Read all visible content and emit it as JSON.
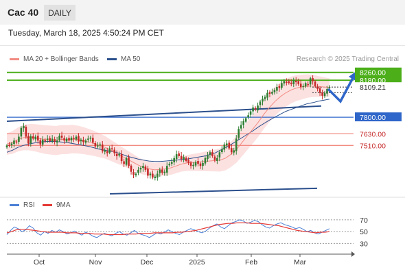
{
  "header": {
    "instrument": "Cac 40",
    "timeframe": "DAILY"
  },
  "datetime": "Tuesday, March 18, 2025 4:50:24 PM CET",
  "legend": {
    "items": [
      {
        "label": "MA 20 + Bollinger Bands",
        "color": "#f28b82"
      },
      {
        "label": "MA 50",
        "color": "#2b4f8c"
      }
    ],
    "source": "Research © 2025 Trading Central"
  },
  "rsi_legend": {
    "items": [
      {
        "label": "RSI",
        "color": "#4a7fd6"
      },
      {
        "label": "9MA",
        "color": "#e53935"
      }
    ]
  },
  "colors": {
    "up": "#2e7d32",
    "down": "#c62828",
    "band": "#fcdcdc",
    "ma20": "#f28b82",
    "ma50": "#2b4f8c",
    "green_level": "#4caf1a",
    "blue_level": "#2f66c9",
    "red_level": "#f28b82"
  },
  "chart_data": [
    {
      "type": "candlestick",
      "x_labels": [
        "Oct",
        "Nov",
        "Dec",
        "2025",
        "Feb",
        "Mar"
      ],
      "ylim": [
        7020,
        8300
      ],
      "series": [
        {
          "name": "price_close",
          "values": [
            7510,
            7512,
            7530,
            7560,
            7540,
            7600,
            7690,
            7710,
            7600,
            7530,
            7605,
            7580,
            7600,
            7560,
            7520,
            7570,
            7560,
            7580,
            7555,
            7580,
            7550,
            7560,
            7610,
            7590,
            7560,
            7580,
            7560,
            7590,
            7580,
            7600,
            7550,
            7570,
            7545,
            7560,
            7580,
            7590,
            7540,
            7500,
            7510,
            7520,
            7450,
            7460,
            7430,
            7480,
            7470,
            7430,
            7400,
            7420,
            7350,
            7320,
            7380,
            7300,
            7240,
            7210,
            7220,
            7260,
            7280,
            7300,
            7260,
            7200,
            7220,
            7180,
            7190,
            7220,
            7260,
            7230,
            7240,
            7300,
            7320,
            7340,
            7380,
            7420,
            7400,
            7370,
            7390,
            7350,
            7330,
            7300,
            7310,
            7340,
            7320,
            7300,
            7330,
            7380,
            7410,
            7440,
            7400,
            7360,
            7380,
            7440,
            7470,
            7520,
            7530,
            7480,
            7440,
            7460,
            7580,
            7680,
            7720,
            7760,
            7790,
            7820,
            7860,
            7900,
            7880,
            7920,
            7960,
            7990,
            8010,
            8050,
            8040,
            8060,
            8080,
            8110,
            8100,
            8150,
            8170,
            8160,
            8150,
            8140,
            8180,
            8160,
            8140,
            8110,
            8120,
            8150,
            8130,
            8200,
            8170,
            8120,
            8090,
            8050,
            8020,
            8050,
            8090,
            8109.21
          ]
        },
        {
          "name": "MA 20",
          "values": [
            7525,
            7540,
            7570,
            7590,
            7595,
            7590,
            7580,
            7570,
            7565,
            7560,
            7570,
            7570,
            7575,
            7570,
            7560,
            7545,
            7530,
            7510,
            7490,
            7460,
            7430,
            7400,
            7370,
            7340,
            7310,
            7285,
            7270,
            7260,
            7265,
            7270,
            7280,
            7300,
            7320,
            7330,
            7335,
            7340,
            7345,
            7350,
            7355,
            7360,
            7380,
            7420,
            7470,
            7540,
            7610,
            7680,
            7750,
            7830,
            7900,
            7960,
            8010,
            8050,
            8080,
            8100,
            8110,
            8120,
            8120,
            8115,
            8110,
            8105
          ]
        },
        {
          "name": "MA 50",
          "values": [
            7440,
            7460,
            7490,
            7510,
            7525,
            7535,
            7545,
            7550,
            7552,
            7550,
            7545,
            7540,
            7530,
            7520,
            7510,
            7500,
            7485,
            7470,
            7460,
            7450,
            7440,
            7420,
            7400,
            7385,
            7370,
            7360,
            7350,
            7345,
            7345,
            7350,
            7355,
            7360,
            7365,
            7370,
            7380,
            7390,
            7400,
            7415,
            7430,
            7460,
            7490,
            7520,
            7555,
            7590,
            7625,
            7660,
            7700,
            7735,
            7770,
            7800,
            7830,
            7860,
            7880,
            7900,
            7920,
            7940,
            7950,
            7965,
            7975,
            7985
          ]
        },
        {
          "name": "RSI",
          "values": [
            45,
            52,
            58,
            55,
            50,
            53,
            60,
            56,
            48,
            44,
            50,
            47,
            52,
            49,
            53,
            50,
            46,
            48,
            51,
            47,
            44,
            49,
            46,
            42,
            40,
            44,
            47,
            45,
            43,
            47,
            50,
            46,
            44,
            48,
            52,
            47,
            45,
            43,
            40,
            44,
            48,
            46,
            49,
            53,
            50,
            47,
            45,
            49,
            52,
            55,
            53,
            50,
            48,
            51,
            56,
            60,
            63,
            58,
            55,
            60,
            65,
            67,
            70,
            68,
            64,
            66,
            69,
            67,
            62,
            58,
            56,
            60,
            63,
            65,
            62,
            60,
            58,
            55,
            57,
            54,
            50,
            52,
            48,
            46,
            49,
            52,
            55
          ]
        },
        {
          "name": "9MA",
          "values": [
            48,
            50,
            53,
            54,
            54,
            53,
            52,
            51,
            50,
            49,
            49,
            49,
            49,
            48,
            48,
            48,
            47,
            47,
            47,
            46,
            46,
            46,
            45,
            45,
            45,
            45,
            46,
            46,
            46,
            47,
            47,
            47,
            48,
            48,
            48,
            48,
            48,
            49,
            49,
            50,
            51,
            52,
            54,
            56,
            58,
            60,
            62,
            63,
            64,
            64,
            65,
            65,
            65,
            64,
            64,
            64,
            63,
            62,
            61,
            60,
            58,
            56,
            54,
            52,
            51,
            50,
            49,
            48,
            49,
            49,
            50
          ]
        }
      ],
      "levels": [
        {
          "label": "8260.00",
          "value": 8260,
          "color": "#4caf1a"
        },
        {
          "label": "8180.00",
          "value": 8180,
          "color": "#4caf1a"
        },
        {
          "label": "8109.21",
          "value": 8109.21,
          "color": "#333333",
          "kind": "current"
        },
        {
          "label": "7800.00",
          "value": 7800,
          "color": "#2f66c9"
        },
        {
          "label": "7630.00",
          "value": 7630,
          "color": "#f28b82"
        },
        {
          "label": "7510.00",
          "value": 7510,
          "color": "#f28b82"
        }
      ]
    },
    {
      "type": "line",
      "y_ticks": [
        "70",
        "50",
        "30"
      ],
      "ylim": [
        20,
        85
      ]
    }
  ]
}
